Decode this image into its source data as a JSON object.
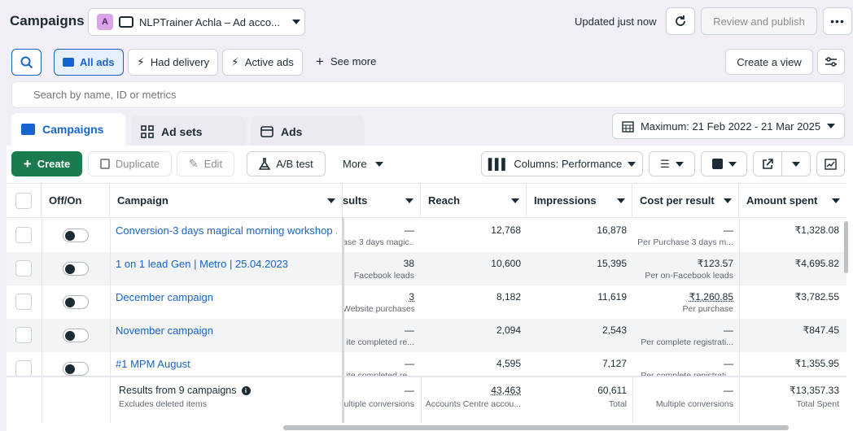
{
  "topbar": {
    "title": "Campaigns",
    "account_initial": "A",
    "account_name": "NLPTrainer Achla – Ad acco...",
    "updated": "Updated just now",
    "review_publish": "Review and publish"
  },
  "filters": {
    "all_ads": "All ads",
    "had_delivery": "Had delivery",
    "active_ads": "Active ads",
    "see_more": "See more",
    "create_view": "Create a view"
  },
  "search": {
    "placeholder": "Search by name, ID or metrics"
  },
  "tabs": [
    {
      "label": "Campaigns"
    },
    {
      "label": "Ad sets"
    },
    {
      "label": "Ads"
    }
  ],
  "date_range": "Maximum: 21 Feb 2022 - 21 Mar 2025",
  "toolbar": {
    "create": "Create",
    "duplicate": "Duplicate",
    "edit": "Edit",
    "ab_test": "A/B test",
    "more": "More",
    "columns": "Columns: Performance"
  },
  "table": {
    "headers": {
      "onoff": "Off/On",
      "campaign": "Campaign",
      "results": "sults",
      "reach": "Reach",
      "impressions": "Impressions",
      "cpr": "Cost per result",
      "spent": "Amount spent"
    },
    "rows": [
      {
        "campaign": "Conversion-3 days magical morning workshop ...",
        "results": "—",
        "results_sub": "ase 3 days magic...",
        "reach": "12,768",
        "impressions": "16,878",
        "cpr": "—",
        "cpr_sub": "Per Purchase 3 days m...",
        "spent": "₹1,328.08"
      },
      {
        "campaign": "1 on 1 lead Gen | Metro | 25.04.2023",
        "results": "38",
        "results_sub": "Facebook leads",
        "reach": "10,600",
        "impressions": "15,395",
        "cpr": "₹123.57",
        "cpr_sub": "Per on-Facebook leads",
        "spent": "₹4,695.82"
      },
      {
        "campaign": "December campaign",
        "results": "3",
        "results_sub": "Website purchases",
        "reach": "8,182",
        "impressions": "11,619",
        "cpr": "₹1,260.85",
        "cpr_sub": "Per purchase",
        "spent": "₹3,782.55"
      },
      {
        "campaign": "November campaign",
        "results": "—",
        "results_sub": "ite completed re...",
        "reach": "2,094",
        "impressions": "2,543",
        "cpr": "—",
        "cpr_sub": "Per complete registrati...",
        "spent": "₹847.45"
      },
      {
        "campaign": "#1 MPM August",
        "results": "—",
        "results_sub": "ite completed re...",
        "reach": "4,595",
        "impressions": "7,127",
        "cpr": "—",
        "cpr_sub": "Per complete registrati...",
        "spent": "₹1,355.95"
      }
    ],
    "footer": {
      "label": "Results from 9 campaigns",
      "sub": "Excludes deleted items",
      "results": "—",
      "results_sub": "ultiple conversions",
      "reach": "43,463",
      "reach_sub": "Accounts Centre accou...",
      "impressions": "60,611",
      "impressions_sub": "Total",
      "cpr": "—",
      "cpr_sub": "Multiple conversions",
      "spent": "₹13,357.33",
      "spent_sub": "Total Spent"
    }
  },
  "colors": {
    "accent": "#1763cf",
    "create": "#1a7b4f",
    "bg": "#f1eef6"
  }
}
